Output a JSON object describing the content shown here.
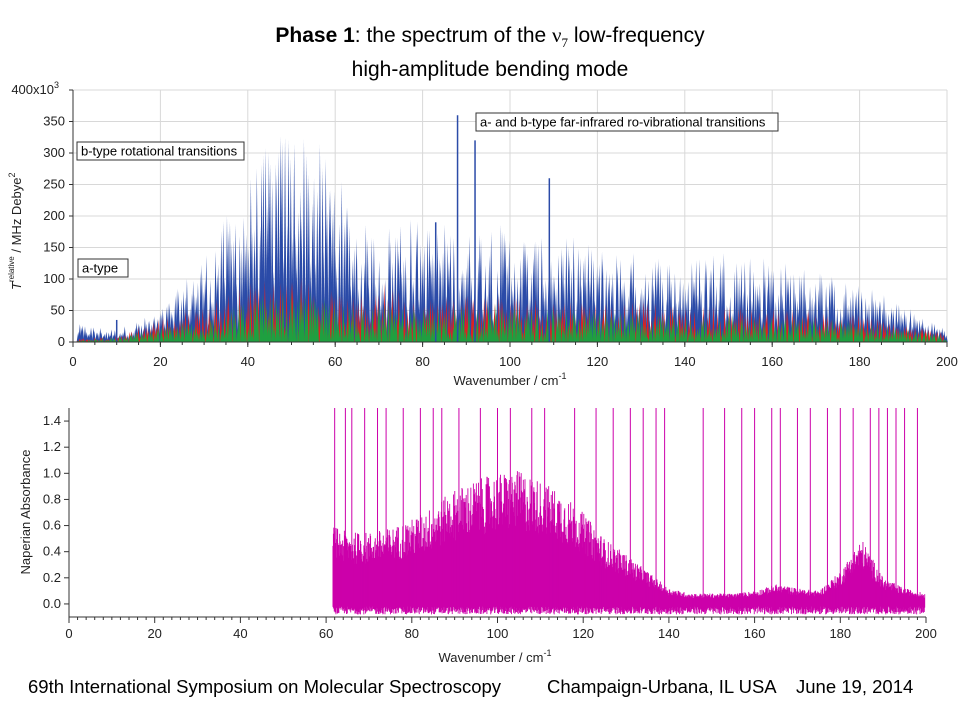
{
  "slide": {
    "title_bold": "Phase 1",
    "title_rest": ": the  spectrum of the ",
    "title_symbol": "ν",
    "title_subscript": "7",
    "title_tail": " low-frequency",
    "title_line2": "high-amplitude bending mode",
    "footer_left": "69th International Symposium on Molecular Spectroscopy",
    "footer_mid": "Champaign-Urbana, IL  USA",
    "footer_right": "June 19, 2014"
  },
  "chart_data": [
    {
      "type": "area",
      "xlabel": "Wavenumber / cm",
      "xlabel_sup": "-1",
      "ylabel": "T",
      "ylabel_sub": "f,i",
      "ylabel_sup": "relative",
      "ylabel_tail": "/ MHz Debye",
      "ylabel_tail_sup": "2",
      "xlim": [
        0,
        200
      ],
      "ylim": [
        0,
        400000
      ],
      "xticks": [
        "0",
        "20",
        "40",
        "60",
        "80",
        "100",
        "120",
        "140",
        "160",
        "180",
        "200"
      ],
      "yticks": [
        "0",
        "50",
        "100",
        "150",
        "200",
        "250",
        "300",
        "350",
        "400x10"
      ],
      "ytick_exp": "3",
      "grid": true,
      "annotations": {
        "b_type": "b-type rotational transitions",
        "a_b_type": "a- and b-type far-infrared ro-vibrational transitions",
        "a_type": "a-type"
      },
      "series": [
        {
          "color": "#2b4ba8",
          "x": [
            0,
            10,
            20,
            30,
            35,
            40,
            45,
            50,
            55,
            60,
            65,
            70,
            75,
            80,
            85,
            90,
            95,
            100,
            105,
            110,
            115,
            120,
            125,
            130,
            135,
            140,
            145,
            150,
            155,
            160,
            165,
            170,
            175,
            180,
            185,
            190,
            195,
            200
          ],
          "y": [
            30000,
            20000,
            50000,
            140000,
            200000,
            260000,
            320000,
            350000,
            330000,
            280000,
            200000,
            170000,
            210000,
            190000,
            190000,
            170000,
            200000,
            180000,
            170000,
            160000,
            170000,
            150000,
            150000,
            140000,
            140000,
            120000,
            150000,
            150000,
            140000,
            140000,
            120000,
            120000,
            100000,
            90000,
            80000,
            60000,
            40000,
            20000
          ]
        },
        {
          "color": "#e02020",
          "x": [
            0,
            10,
            20,
            30,
            40,
            45,
            50,
            55,
            60,
            65,
            70,
            80,
            90,
            100,
            110,
            120,
            130,
            140,
            150,
            160,
            170,
            180,
            190,
            200
          ],
          "y": [
            5000,
            10000,
            40000,
            60000,
            95000,
            105000,
            108000,
            100000,
            80000,
            70000,
            100000,
            70000,
            80000,
            75000,
            70000,
            65000,
            65000,
            55000,
            60000,
            55000,
            50000,
            45000,
            30000,
            15000
          ]
        },
        {
          "color": "#1fa040",
          "x": [
            0,
            10,
            20,
            30,
            40,
            45,
            50,
            55,
            60,
            65,
            70,
            80,
            90,
            100,
            110,
            120,
            130,
            140,
            150,
            160,
            170,
            180,
            190,
            200
          ],
          "y": [
            3000,
            8000,
            25000,
            45000,
            70000,
            80000,
            85000,
            80000,
            65000,
            55000,
            60000,
            55000,
            65000,
            60000,
            55000,
            50000,
            50000,
            45000,
            45000,
            40000,
            40000,
            35000,
            25000,
            10000
          ]
        }
      ]
    },
    {
      "type": "line",
      "xlabel": "Wavenumber  / cm",
      "xlabel_sup": "-1",
      "ylabel": "Naperian Absorbance",
      "xlim": [
        0,
        200
      ],
      "ylim": [
        -0.1,
        1.5
      ],
      "xticks": [
        "0",
        "20",
        "40",
        "60",
        "80",
        "100",
        "120",
        "140",
        "160",
        "180",
        "200"
      ],
      "yticks": [
        "0.0",
        "0.2",
        "0.4",
        "0.6",
        "0.8",
        "1.0",
        "1.2",
        "1.4"
      ],
      "grid": false,
      "series": [
        {
          "color": "#cc00aa",
          "x": [
            61.5,
            65,
            70,
            75,
            80,
            85,
            90,
            95,
            100,
            105,
            110,
            115,
            120,
            125,
            130,
            135,
            140,
            145,
            150,
            155,
            160,
            165,
            170,
            175,
            180,
            185,
            190,
            195,
            200
          ],
          "y": [
            0.6,
            0.55,
            0.55,
            0.58,
            0.65,
            0.75,
            0.88,
            0.95,
            1.0,
            1.02,
            0.95,
            0.85,
            0.7,
            0.5,
            0.38,
            0.25,
            0.12,
            0.08,
            0.08,
            0.08,
            0.1,
            0.15,
            0.12,
            0.1,
            0.25,
            0.5,
            0.2,
            0.12,
            0.08
          ]
        }
      ]
    }
  ]
}
